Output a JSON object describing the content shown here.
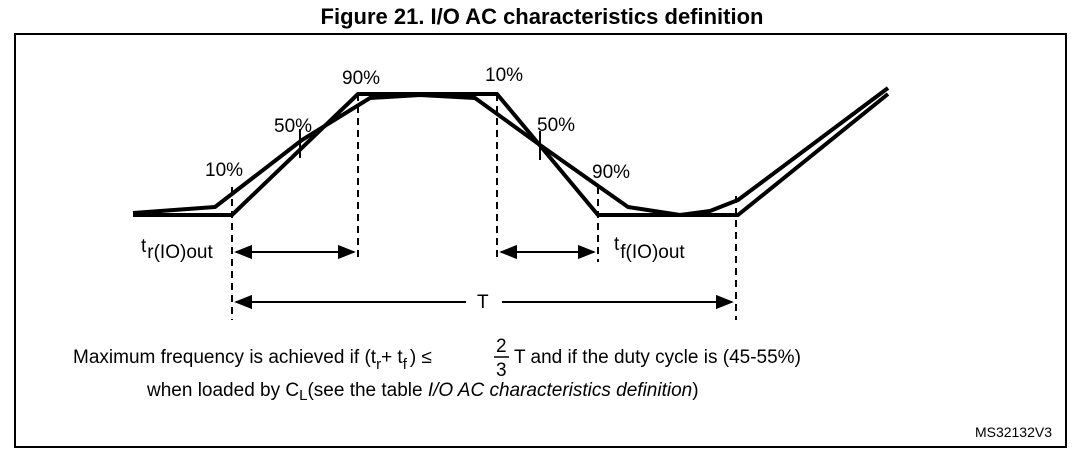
{
  "title": "Figure 21. I/O AC characteristics definition",
  "labels": {
    "rise_10": "10%",
    "rise_50": "50%",
    "rise_90": "90%",
    "fall_10": "10%",
    "fall_50": "50%",
    "fall_90": "90%",
    "tr_main": "t",
    "tr_sub": "r(IO)out",
    "tf_main": "t",
    "tf_sub": "f(IO)out",
    "period": "T"
  },
  "note": {
    "line1_a": "Maximum frequency is achieved if (t",
    "line1_sub_r": "r",
    "line1_b": "+ t",
    "line1_sub_f": "f",
    "line1_c": ") ≤",
    "frac_num": "2",
    "frac_den": "3",
    "line1_d": "T and if the duty cycle is (45-55%)",
    "line2_a": "when loaded by C",
    "line2_sub": "L",
    "line2_b": "(see the table ",
    "line2_italic": "I/O AC characteristics definition",
    "line2_c": ")"
  },
  "ref_code": "MS32132V3"
}
